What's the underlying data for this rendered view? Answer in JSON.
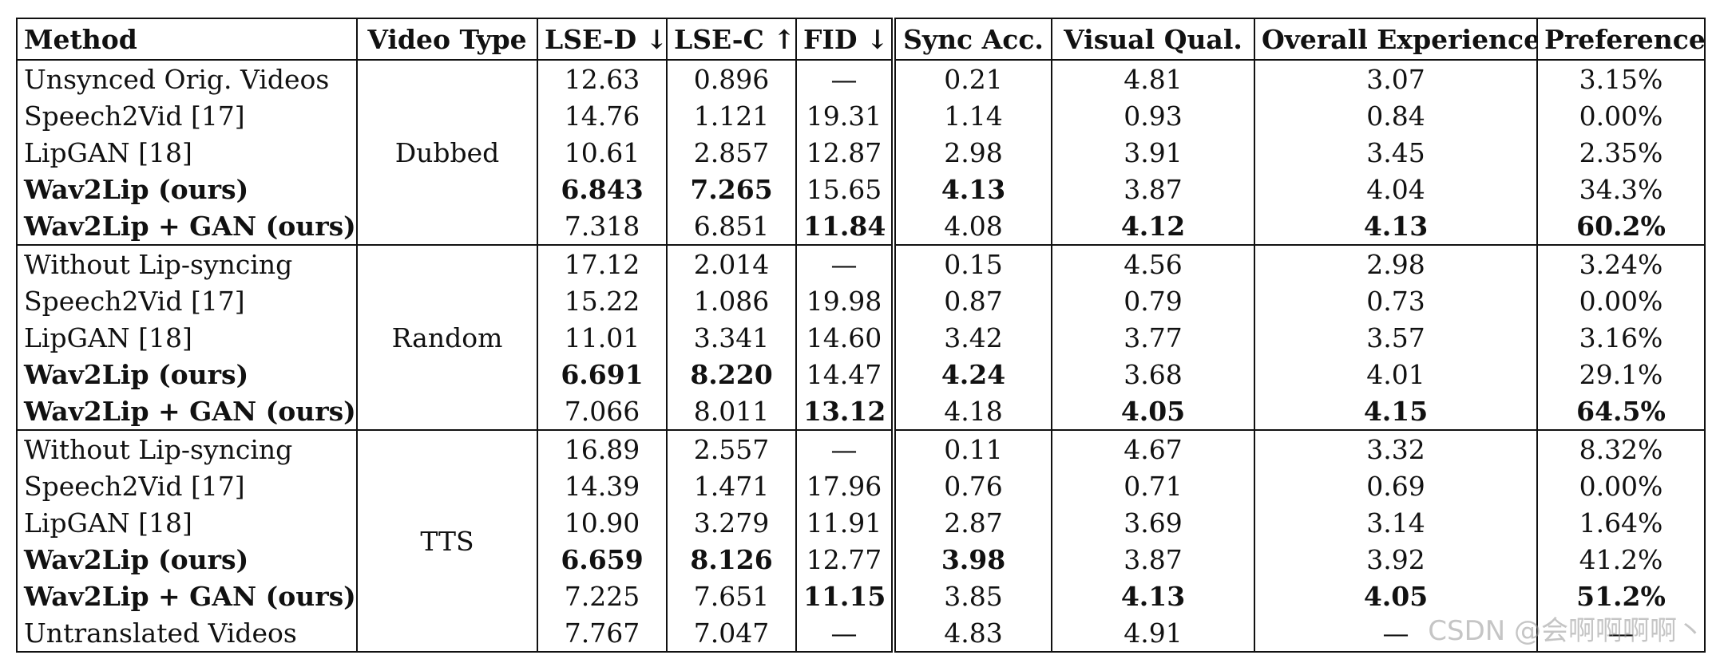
{
  "table": {
    "headers": [
      {
        "label": "Method",
        "cls": "method"
      },
      {
        "label": "Video Type"
      },
      {
        "label": "LSE-D ↓"
      },
      {
        "label": "LSE-C ↑"
      },
      {
        "label": "FID ↓",
        "dbl": true
      },
      {
        "label": "Sync Acc."
      },
      {
        "label": "Visual Qual."
      },
      {
        "label": "Overall Experience"
      },
      {
        "label": "Preference"
      }
    ],
    "groups": [
      {
        "video_type": "Dubbed",
        "rows": [
          {
            "method": "Unsynced Orig. Videos",
            "bold_method": false,
            "vals": [
              "12.63",
              "0.896",
              "—",
              "0.21",
              "4.81",
              "3.07",
              "3.15%"
            ],
            "bold": []
          },
          {
            "method": "Speech2Vid [17]",
            "bold_method": false,
            "vals": [
              "14.76",
              "1.121",
              "19.31",
              "1.14",
              "0.93",
              "0.84",
              "0.00%"
            ],
            "bold": []
          },
          {
            "method": "LipGAN [18]",
            "bold_method": false,
            "vals": [
              "10.61",
              "2.857",
              "12.87",
              "2.98",
              "3.91",
              "3.45",
              "2.35%"
            ],
            "bold": []
          },
          {
            "method": "Wav2Lip (ours)",
            "bold_method": true,
            "vals": [
              "6.843",
              "7.265",
              "15.65",
              "4.13",
              "3.87",
              "4.04",
              "34.3%"
            ],
            "bold": [
              0,
              1,
              3
            ]
          },
          {
            "method": "Wav2Lip + GAN (ours)",
            "bold_method": true,
            "vals": [
              "7.318",
              "6.851",
              "11.84",
              "4.08",
              "4.12",
              "4.13",
              "60.2%"
            ],
            "bold": [
              2,
              4,
              5,
              6
            ]
          }
        ]
      },
      {
        "video_type": "Random",
        "rows": [
          {
            "method": "Without Lip-syncing",
            "bold_method": false,
            "vals": [
              "17.12",
              "2.014",
              "—",
              "0.15",
              "4.56",
              "2.98",
              "3.24%"
            ],
            "bold": []
          },
          {
            "method": "Speech2Vid [17]",
            "bold_method": false,
            "vals": [
              "15.22",
              "1.086",
              "19.98",
              "0.87",
              "0.79",
              "0.73",
              "0.00%"
            ],
            "bold": []
          },
          {
            "method": "LipGAN [18]",
            "bold_method": false,
            "vals": [
              "11.01",
              "3.341",
              "14.60",
              "3.42",
              "3.77",
              "3.57",
              "3.16%"
            ],
            "bold": []
          },
          {
            "method": "Wav2Lip (ours)",
            "bold_method": true,
            "vals": [
              "6.691",
              "8.220",
              "14.47",
              "4.24",
              "3.68",
              "4.01",
              "29.1%"
            ],
            "bold": [
              0,
              1,
              3
            ]
          },
          {
            "method": "Wav2Lip + GAN (ours)",
            "bold_method": true,
            "vals": [
              "7.066",
              "8.011",
              "13.12",
              "4.18",
              "4.05",
              "4.15",
              "64.5%"
            ],
            "bold": [
              2,
              4,
              5,
              6
            ]
          }
        ]
      },
      {
        "video_type": "TTS",
        "rows": [
          {
            "method": "Without Lip-syncing",
            "bold_method": false,
            "vals": [
              "16.89",
              "2.557",
              "—",
              "0.11",
              "4.67",
              "3.32",
              "8.32%"
            ],
            "bold": []
          },
          {
            "method": "Speech2Vid [17]",
            "bold_method": false,
            "vals": [
              "14.39",
              "1.471",
              "17.96",
              "0.76",
              "0.71",
              "0.69",
              "0.00%"
            ],
            "bold": []
          },
          {
            "method": "LipGAN [18]",
            "bold_method": false,
            "vals": [
              "10.90",
              "3.279",
              "11.91",
              "2.87",
              "3.69",
              "3.14",
              "1.64%"
            ],
            "bold": []
          },
          {
            "method": "Wav2Lip (ours)",
            "bold_method": true,
            "vals": [
              "6.659",
              "8.126",
              "12.77",
              "3.98",
              "3.87",
              "3.92",
              "41.2%"
            ],
            "bold": [
              0,
              1,
              3
            ]
          },
          {
            "method": "Wav2Lip + GAN (ours)",
            "bold_method": true,
            "vals": [
              "7.225",
              "7.651",
              "11.15",
              "3.85",
              "4.13",
              "4.05",
              "51.2%"
            ],
            "bold": [
              2,
              4,
              5,
              6
            ]
          },
          {
            "method": "Untranslated Videos",
            "bold_method": false,
            "vals": [
              "7.767",
              "7.047",
              "—",
              "4.83",
              "4.91",
              "—",
              "—"
            ],
            "bold": []
          }
        ]
      }
    ]
  },
  "watermark": "CSDN @会啊啊啊啊丶"
}
